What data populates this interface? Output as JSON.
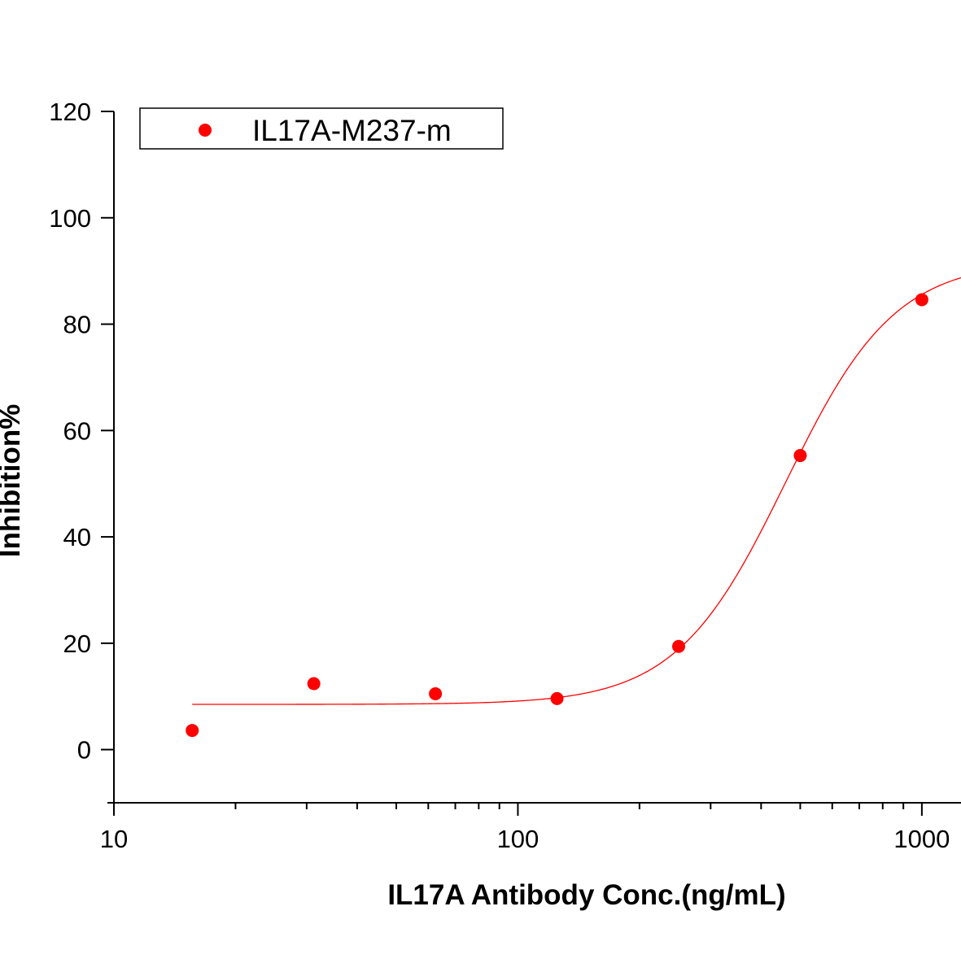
{
  "chart_data": {
    "type": "scatter",
    "title": "",
    "xlabel": "IL17A Antibody Conc.(ng/mL)",
    "ylabel": "Inhibition%",
    "xscale": "log",
    "xlim": [
      10,
      1250
    ],
    "ylim": [
      -10,
      120
    ],
    "x_ticks": [
      10,
      100,
      1000
    ],
    "x_tick_labels": [
      "10",
      "100",
      "1000"
    ],
    "y_ticks": [
      0,
      20,
      40,
      60,
      80,
      100,
      120
    ],
    "y_tick_labels": [
      "0",
      "20",
      "40",
      "60",
      "80",
      "100",
      "120"
    ],
    "legend_position": "top-left",
    "grid": false,
    "series": [
      {
        "name": "IL17A-M237-m",
        "color": "#ff0000",
        "marker": "circle",
        "x": [
          15.625,
          31.25,
          62.5,
          125,
          250,
          500,
          1000
        ],
        "y": [
          3.6,
          12.4,
          10.5,
          9.6,
          19.4,
          55.3,
          84.6
        ]
      }
    ],
    "fit": {
      "name": "IL17A-M237-m fit",
      "type": "4PL",
      "color": "#ff0000",
      "bottom": 8.5,
      "top": 92,
      "ec50": 460,
      "hill": 3.2,
      "x_range": [
        15.625,
        1250
      ]
    }
  }
}
